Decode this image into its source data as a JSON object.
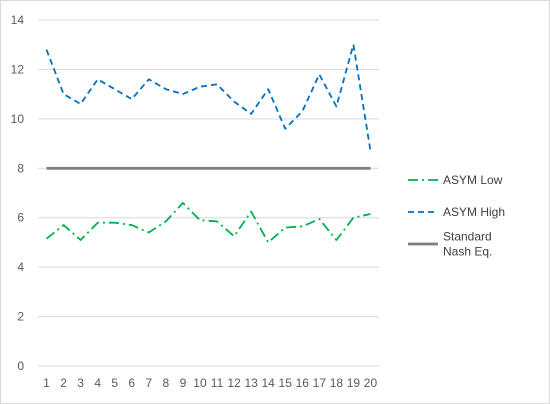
{
  "chart_data": {
    "type": "line",
    "x": [
      1,
      2,
      3,
      4,
      5,
      6,
      7,
      8,
      9,
      10,
      11,
      12,
      13,
      14,
      15,
      16,
      17,
      18,
      19,
      20
    ],
    "ylim": [
      0,
      14
    ],
    "yticks": [
      0,
      2,
      4,
      6,
      8,
      10,
      12,
      14
    ],
    "grid": "horizontal",
    "legend": "right",
    "series": [
      {
        "name": "ASYM Low",
        "color": "#00b050",
        "style": "dash-dot",
        "values": [
          5.15,
          5.7,
          5.1,
          5.8,
          5.8,
          5.7,
          5.4,
          5.85,
          6.6,
          5.9,
          5.85,
          5.25,
          6.25,
          5.0,
          5.6,
          5.65,
          5.95,
          5.1,
          6.0,
          6.15
        ]
      },
      {
        "name": "ASYM High",
        "color": "#0070c0",
        "style": "dash",
        "values": [
          12.8,
          11.0,
          10.6,
          11.6,
          11.2,
          10.8,
          11.6,
          11.2,
          11.0,
          11.3,
          11.4,
          10.7,
          10.2,
          11.2,
          9.6,
          10.3,
          11.8,
          10.5,
          13.0,
          8.7
        ]
      },
      {
        "name": "Standard\nNash Eq.",
        "color": "#7f7f7f",
        "style": "solid",
        "values": [
          8,
          8,
          8,
          8,
          8,
          8,
          8,
          8,
          8,
          8,
          8,
          8,
          8,
          8,
          8,
          8,
          8,
          8,
          8,
          8
        ]
      }
    ]
  }
}
